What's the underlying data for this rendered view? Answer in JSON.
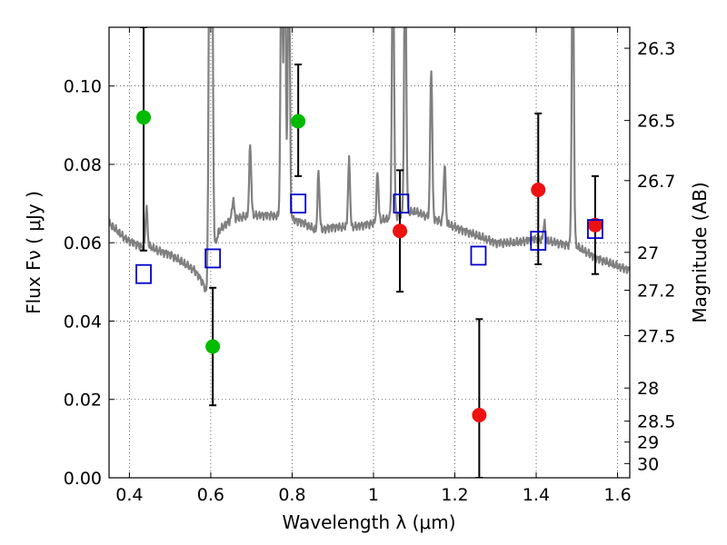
{
  "chart_data": {
    "type": "scatter",
    "xlabel": "Wavelength  λ (μm)",
    "ylabel": "Flux  Fν  ( μJy )",
    "ylabel_right": "Magnitude (AB)",
    "xlim": [
      0.35,
      1.63
    ],
    "ylim": [
      0.0,
      0.115
    ],
    "grid": true,
    "x_ticks": [
      0.4,
      0.6,
      0.8,
      1.0,
      1.2,
      1.4,
      1.6
    ],
    "x_tick_labels": [
      "0.4",
      "0.6",
      "0.8",
      "1",
      "1.2",
      "1.4",
      "1.6"
    ],
    "y_ticks": [
      0.0,
      0.02,
      0.04,
      0.06,
      0.08,
      0.1
    ],
    "y_tick_labels": [
      "0.00",
      "0.02",
      "0.04",
      "0.06",
      "0.08",
      "0.10"
    ],
    "right_ticks": [
      "26.3",
      "26.5",
      "26.7",
      "27",
      "27.2",
      "27.5",
      "28",
      "28.5",
      "29",
      "30"
    ],
    "series": [
      {
        "marker": "circle",
        "color": "#00bb00",
        "points": [
          {
            "x": 0.435,
            "y": 0.092,
            "err_lo": 0.034,
            "err_hi": 0.023
          },
          {
            "x": 0.605,
            "y": 0.0335,
            "err_lo": 0.015,
            "err_hi": 0.015
          },
          {
            "x": 0.815,
            "y": 0.091,
            "err_lo": 0.014,
            "err_hi": 0.0145
          }
        ]
      },
      {
        "marker": "circle",
        "color": "#ee1111",
        "points": [
          {
            "x": 1.065,
            "y": 0.063,
            "err_lo": 0.0155,
            "err_hi": 0.0155
          },
          {
            "x": 1.26,
            "y": 0.016,
            "err_lo": 0.016,
            "err_hi": 0.0245
          },
          {
            "x": 1.405,
            "y": 0.0735,
            "err_lo": 0.019,
            "err_hi": 0.0195
          },
          {
            "x": 1.545,
            "y": 0.0645,
            "err_lo": 0.0125,
            "err_hi": 0.0125
          }
        ]
      },
      {
        "marker": "open-square",
        "color": "#0000cc",
        "points": [
          {
            "x": 0.435,
            "y": 0.052
          },
          {
            "x": 0.605,
            "y": 0.056
          },
          {
            "x": 0.815,
            "y": 0.07
          },
          {
            "x": 1.068,
            "y": 0.07
          },
          {
            "x": 1.258,
            "y": 0.0567
          },
          {
            "x": 1.405,
            "y": 0.0605
          },
          {
            "x": 1.545,
            "y": 0.0635
          }
        ]
      },
      {
        "kind": "spectrum",
        "color": "#808080",
        "x": [
          0.35,
          0.37,
          0.39,
          0.41,
          0.43,
          0.45,
          0.47,
          0.5,
          0.53,
          0.56,
          0.58,
          0.59,
          0.6,
          0.62,
          0.65,
          0.7,
          0.75,
          0.8,
          0.83,
          0.86,
          0.9,
          0.95,
          1.0,
          1.03,
          1.06,
          1.1,
          1.15,
          1.2,
          1.25,
          1.3,
          1.35,
          1.4,
          1.45,
          1.5,
          1.55,
          1.6,
          1.63
        ],
        "y": [
          0.065,
          0.063,
          0.061,
          0.06,
          0.059,
          0.059,
          0.058,
          0.057,
          0.055,
          0.053,
          0.05,
          0.047,
          0.055,
          0.063,
          0.066,
          0.067,
          0.067,
          0.066,
          0.065,
          0.063,
          0.064,
          0.064,
          0.065,
          0.066,
          0.067,
          0.068,
          0.066,
          0.064,
          0.062,
          0.06,
          0.06,
          0.061,
          0.06,
          0.059,
          0.056,
          0.054,
          0.053
        ],
        "emission_lines": [
          {
            "x": 0.442,
            "peak": 0.069
          },
          {
            "x": 0.597,
            "peak": 0.14
          },
          {
            "x": 0.603,
            "peak": 0.14
          },
          {
            "x": 0.655,
            "peak": 0.071
          },
          {
            "x": 0.697,
            "peak": 0.085
          },
          {
            "x": 0.774,
            "peak": 0.14
          },
          {
            "x": 0.782,
            "peak": 0.14
          },
          {
            "x": 0.792,
            "peak": 0.14
          },
          {
            "x": 0.865,
            "peak": 0.078
          },
          {
            "x": 0.94,
            "peak": 0.081
          },
          {
            "x": 1.01,
            "peak": 0.078
          },
          {
            "x": 1.048,
            "peak": 0.14
          },
          {
            "x": 1.078,
            "peak": 0.14
          },
          {
            "x": 1.142,
            "peak": 0.105
          },
          {
            "x": 1.175,
            "peak": 0.08
          },
          {
            "x": 1.42,
            "peak": 0.065
          },
          {
            "x": 1.49,
            "peak": 0.14
          }
        ]
      }
    ]
  }
}
